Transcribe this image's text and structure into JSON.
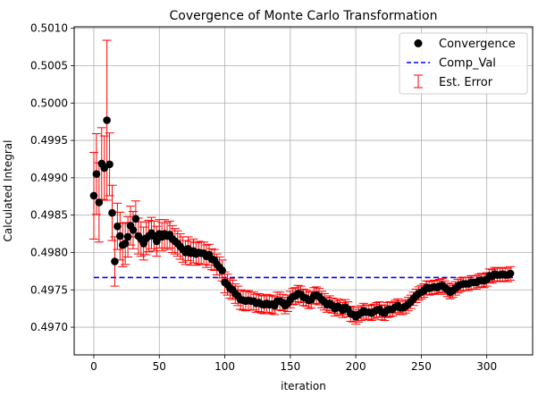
{
  "chart_data": {
    "type": "scatter",
    "title": "Covergence of Monte Carlo Transformation",
    "xlabel": "iteration",
    "ylabel": "Calculated Integral",
    "xlim": [
      -15,
      335
    ],
    "ylim": [
      0.49663,
      0.50102
    ],
    "xticks": [
      0,
      50,
      100,
      150,
      200,
      250,
      300
    ],
    "yticks": [
      0.497,
      0.4975,
      0.498,
      0.4985,
      0.499,
      0.4995,
      0.5,
      0.5005,
      0.501
    ],
    "ytick_labels": [
      "0.4970",
      "0.4975",
      "0.4980",
      "0.4985",
      "0.4990",
      "0.4995",
      "0.5000",
      "0.5005",
      "0.5010"
    ],
    "grid": true,
    "legend_position": "top-right",
    "series": [
      {
        "name": "Convergence",
        "kind": "scatter",
        "color": "#000000",
        "x": [
          0,
          2,
          4,
          6,
          8,
          10,
          12,
          14,
          16,
          18,
          20,
          22,
          24,
          26,
          28,
          30,
          32,
          34,
          36,
          38,
          40,
          42,
          44,
          46,
          48,
          50,
          52,
          54,
          56,
          58,
          60,
          62,
          64,
          66,
          68,
          70,
          72,
          74,
          76,
          78,
          80,
          82,
          84,
          86,
          88,
          90,
          92,
          94,
          96,
          98,
          100,
          102,
          104,
          106,
          108,
          110,
          112,
          114,
          116,
          118,
          120,
          122,
          124,
          126,
          128,
          130,
          132,
          134,
          136,
          138,
          140,
          142,
          144,
          146,
          148,
          150,
          152,
          154,
          156,
          158,
          160,
          162,
          164,
          166,
          168,
          170,
          172,
          174,
          176,
          178,
          180,
          182,
          184,
          186,
          188,
          190,
          192,
          194,
          196,
          198,
          200,
          202,
          204,
          206,
          208,
          210,
          212,
          214,
          216,
          218,
          220,
          222,
          224,
          226,
          228,
          230,
          232,
          234,
          236,
          238,
          240,
          242,
          244,
          246,
          248,
          250,
          252,
          254,
          256,
          258,
          260,
          262,
          264,
          266,
          268,
          270,
          272,
          274,
          276,
          278,
          280,
          282,
          284,
          286,
          288,
          290,
          292,
          294,
          296,
          298,
          300,
          302,
          304,
          306,
          308,
          310,
          312,
          314,
          316,
          318
        ],
        "y": [
          0.49876,
          0.49905,
          0.49867,
          0.49919,
          0.49913,
          0.49977,
          0.49918,
          0.49853,
          0.49788,
          0.49835,
          0.49822,
          0.4981,
          0.49812,
          0.49821,
          0.49836,
          0.4983,
          0.49845,
          0.49822,
          0.49818,
          0.49812,
          0.49819,
          0.49822,
          0.49826,
          0.49822,
          0.49815,
          0.49825,
          0.49821,
          0.49825,
          0.49822,
          0.49824,
          0.49818,
          0.49815,
          0.49812,
          0.49808,
          0.49804,
          0.498,
          0.49805,
          0.49799,
          0.49802,
          0.49798,
          0.498,
          0.49799,
          0.49799,
          0.49795,
          0.49797,
          0.49791,
          0.4979,
          0.49784,
          0.4978,
          0.49776,
          0.4976,
          0.49757,
          0.49752,
          0.4975,
          0.49745,
          0.49742,
          0.49737,
          0.49736,
          0.49735,
          0.49736,
          0.49735,
          0.49735,
          0.49732,
          0.49733,
          0.49731,
          0.4973,
          0.49732,
          0.4973,
          0.49731,
          0.49729,
          0.49735,
          0.49735,
          0.49733,
          0.49729,
          0.49732,
          0.49737,
          0.49741,
          0.49742,
          0.49745,
          0.49744,
          0.4974,
          0.49739,
          0.49736,
          0.49737,
          0.49742,
          0.49743,
          0.49741,
          0.49737,
          0.49734,
          0.4973,
          0.49732,
          0.49729,
          0.49725,
          0.49728,
          0.49726,
          0.49723,
          0.49727,
          0.49724,
          0.49718,
          0.49717,
          0.49714,
          0.49717,
          0.49719,
          0.49722,
          0.4972,
          0.4972,
          0.49719,
          0.49721,
          0.49723,
          0.49724,
          0.4972,
          0.49719,
          0.49723,
          0.49724,
          0.49724,
          0.49727,
          0.49729,
          0.49726,
          0.49726,
          0.49728,
          0.49731,
          0.49734,
          0.49738,
          0.49742,
          0.49745,
          0.49747,
          0.49749,
          0.49753,
          0.49752,
          0.49753,
          0.49754,
          0.49753,
          0.49755,
          0.49756,
          0.49753,
          0.4975,
          0.49747,
          0.49749,
          0.49752,
          0.49755,
          0.49757,
          0.49758,
          0.49758,
          0.49758,
          0.4976,
          0.4976,
          0.4976,
          0.49762,
          0.49763,
          0.49762,
          0.49764,
          0.49769,
          0.49768,
          0.49771,
          0.4977,
          0.4977,
          0.49771,
          0.4977,
          0.4977,
          0.49772
        ],
        "error": [
          0.00058,
          0.00054,
          0.00053,
          0.00048,
          0.00043,
          0.00107,
          0.00042,
          0.00037,
          0.00033,
          0.00031,
          0.00032,
          0.00029,
          0.00028,
          0.00027,
          0.00026,
          0.00025,
          0.00024,
          0.00024,
          0.00023,
          0.00022,
          0.00022,
          0.00021,
          0.00021,
          0.0002,
          0.0002,
          0.00019,
          0.00019,
          0.00019,
          0.00018,
          0.00018,
          0.00018,
          0.00017,
          0.00017,
          0.00017,
          0.00017,
          0.00016,
          0.00016,
          0.00016,
          0.00016,
          0.00015,
          0.00015,
          0.00015,
          0.00015,
          0.00015,
          0.00014,
          0.00014,
          0.00014,
          0.00014,
          0.00014,
          0.00014,
          0.00014,
          0.00014,
          0.00013,
          0.00013,
          0.00013,
          0.00013,
          0.00013,
          0.00013,
          0.00013,
          0.00013,
          0.00012,
          0.00012,
          0.00012,
          0.00012,
          0.00012,
          0.00012,
          0.00012,
          0.00012,
          0.00012,
          0.00012,
          0.00012,
          0.00012,
          0.00011,
          0.00011,
          0.00011,
          0.00011,
          0.00011,
          0.00011,
          0.00011,
          0.00011,
          0.00011,
          0.00011,
          0.00011,
          0.00011,
          0.00011,
          0.00011,
          0.00011,
          0.00011,
          0.00011,
          0.0001,
          0.0001,
          0.0001,
          0.0001,
          0.0001,
          0.0001,
          0.0001,
          0.0001,
          0.0001,
          0.0001,
          0.0001,
          0.0001,
          0.0001,
          0.0001,
          0.0001,
          0.0001,
          0.0001,
          0.0001,
          0.0001,
          0.0001,
          0.0001,
          0.0001,
          0.0001,
          0.0001,
          0.0001,
          9e-05,
          9e-05,
          9e-05,
          9e-05,
          9e-05,
          9e-05,
          9e-05,
          9e-05,
          9e-05,
          9e-05,
          9e-05,
          9e-05,
          9e-05,
          9e-05,
          9e-05,
          9e-05,
          9e-05,
          9e-05,
          9e-05,
          9e-05,
          9e-05,
          9e-05,
          9e-05,
          9e-05,
          9e-05,
          9e-05,
          9e-05,
          9e-05,
          9e-05,
          9e-05,
          9e-05,
          9e-05,
          9e-05,
          9e-05,
          9e-05,
          9e-05,
          9e-05,
          9e-05,
          9e-05,
          9e-05,
          9e-05,
          9e-05,
          9e-05,
          9e-05,
          9e-05,
          9e-05
        ]
      },
      {
        "name": "Comp_Val",
        "kind": "line",
        "style": "dashed",
        "color": "#0000ff",
        "x": [
          0,
          320
        ],
        "y": [
          0.497665,
          0.497665
        ]
      },
      {
        "name": "Est. Error",
        "kind": "errorbar",
        "color": "#ff0000"
      }
    ]
  }
}
